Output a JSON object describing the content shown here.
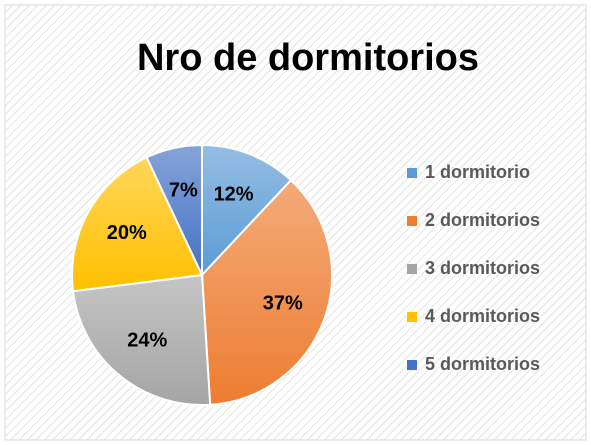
{
  "chart_data": {
    "type": "pie",
    "title": "Nro de dormitorios",
    "categories": [
      "1 dormitorio",
      "2 dormitorios",
      "3 dormitorios",
      "4 dormitorios",
      "5 dormitorios"
    ],
    "values": [
      12,
      37,
      24,
      20,
      7
    ],
    "value_labels": [
      "12%",
      "37%",
      "24%",
      "20%",
      "7%"
    ],
    "colors": [
      "#5b9bd5",
      "#ed7d31",
      "#a5a5a5",
      "#ffc000",
      "#4472c4"
    ],
    "legend": "right"
  }
}
